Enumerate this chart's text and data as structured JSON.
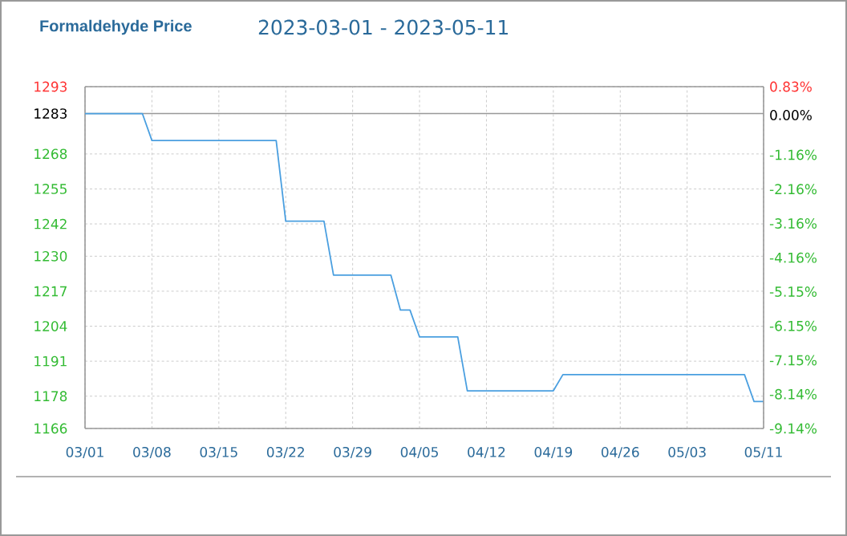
{
  "chart_data": {
    "type": "line",
    "title": "Formaldehyde Price",
    "subtitle": "2023-03-01 - 2023-05-11",
    "x": [
      "2023-03-01",
      "2023-03-07",
      "2023-03-08",
      "2023-03-21",
      "2023-03-22",
      "2023-03-26",
      "2023-03-27",
      "2023-04-02",
      "2023-04-03",
      "2023-04-04",
      "2023-04-05",
      "2023-04-09",
      "2023-04-10",
      "2023-04-19",
      "2023-04-20",
      "2023-05-09",
      "2023-05-10",
      "2023-05-11"
    ],
    "series": [
      {
        "color": "#4a9fe0",
        "values": [
          1283,
          1283,
          1273,
          1273,
          1243,
          1243,
          1223,
          1223,
          1210,
          1210,
          1200,
          1200,
          1180,
          1180,
          1186,
          1186,
          1176,
          1176
        ]
      }
    ],
    "xlim": [
      "2023-03-01",
      "2023-05-11"
    ],
    "xticks": [
      {
        "value": "2023-03-01",
        "label": "03/01"
      },
      {
        "value": "2023-03-08",
        "label": "03/08"
      },
      {
        "value": "2023-03-15",
        "label": "03/15"
      },
      {
        "value": "2023-03-22",
        "label": "03/22"
      },
      {
        "value": "2023-03-29",
        "label": "03/29"
      },
      {
        "value": "2023-04-05",
        "label": "04/05"
      },
      {
        "value": "2023-04-12",
        "label": "04/12"
      },
      {
        "value": "2023-04-19",
        "label": "04/19"
      },
      {
        "value": "2023-04-26",
        "label": "04/26"
      },
      {
        "value": "2023-05-03",
        "label": "05/03"
      },
      {
        "value": "2023-05-11",
        "label": "05/11"
      }
    ],
    "ylim": [
      1166,
      1293
    ],
    "yticks": [
      1166,
      1178,
      1191,
      1204,
      1217,
      1230,
      1242,
      1255,
      1268,
      1283,
      1293
    ],
    "y2lim": [
      -9.14,
      0.83
    ],
    "y2ticks": [
      {
        "value": -9.14,
        "label": "-9.14%"
      },
      {
        "value": -8.14,
        "label": "-8.14%"
      },
      {
        "value": -7.15,
        "label": "-7.15%"
      },
      {
        "value": -6.15,
        "label": "-6.15%"
      },
      {
        "value": -5.15,
        "label": "-5.15%"
      },
      {
        "value": -4.16,
        "label": "-4.16%"
      },
      {
        "value": -3.16,
        "label": "-3.16%"
      },
      {
        "value": -2.16,
        "label": "-2.16%"
      },
      {
        "value": -1.16,
        "label": "-1.16%"
      },
      {
        "value": 0,
        "label": "0.00%"
      },
      {
        "value": 0.83,
        "label": "0.83%"
      }
    ],
    "grid": true,
    "ref_lines": [
      {
        "axis": "y",
        "value": 1283,
        "color": "#999999"
      }
    ]
  }
}
